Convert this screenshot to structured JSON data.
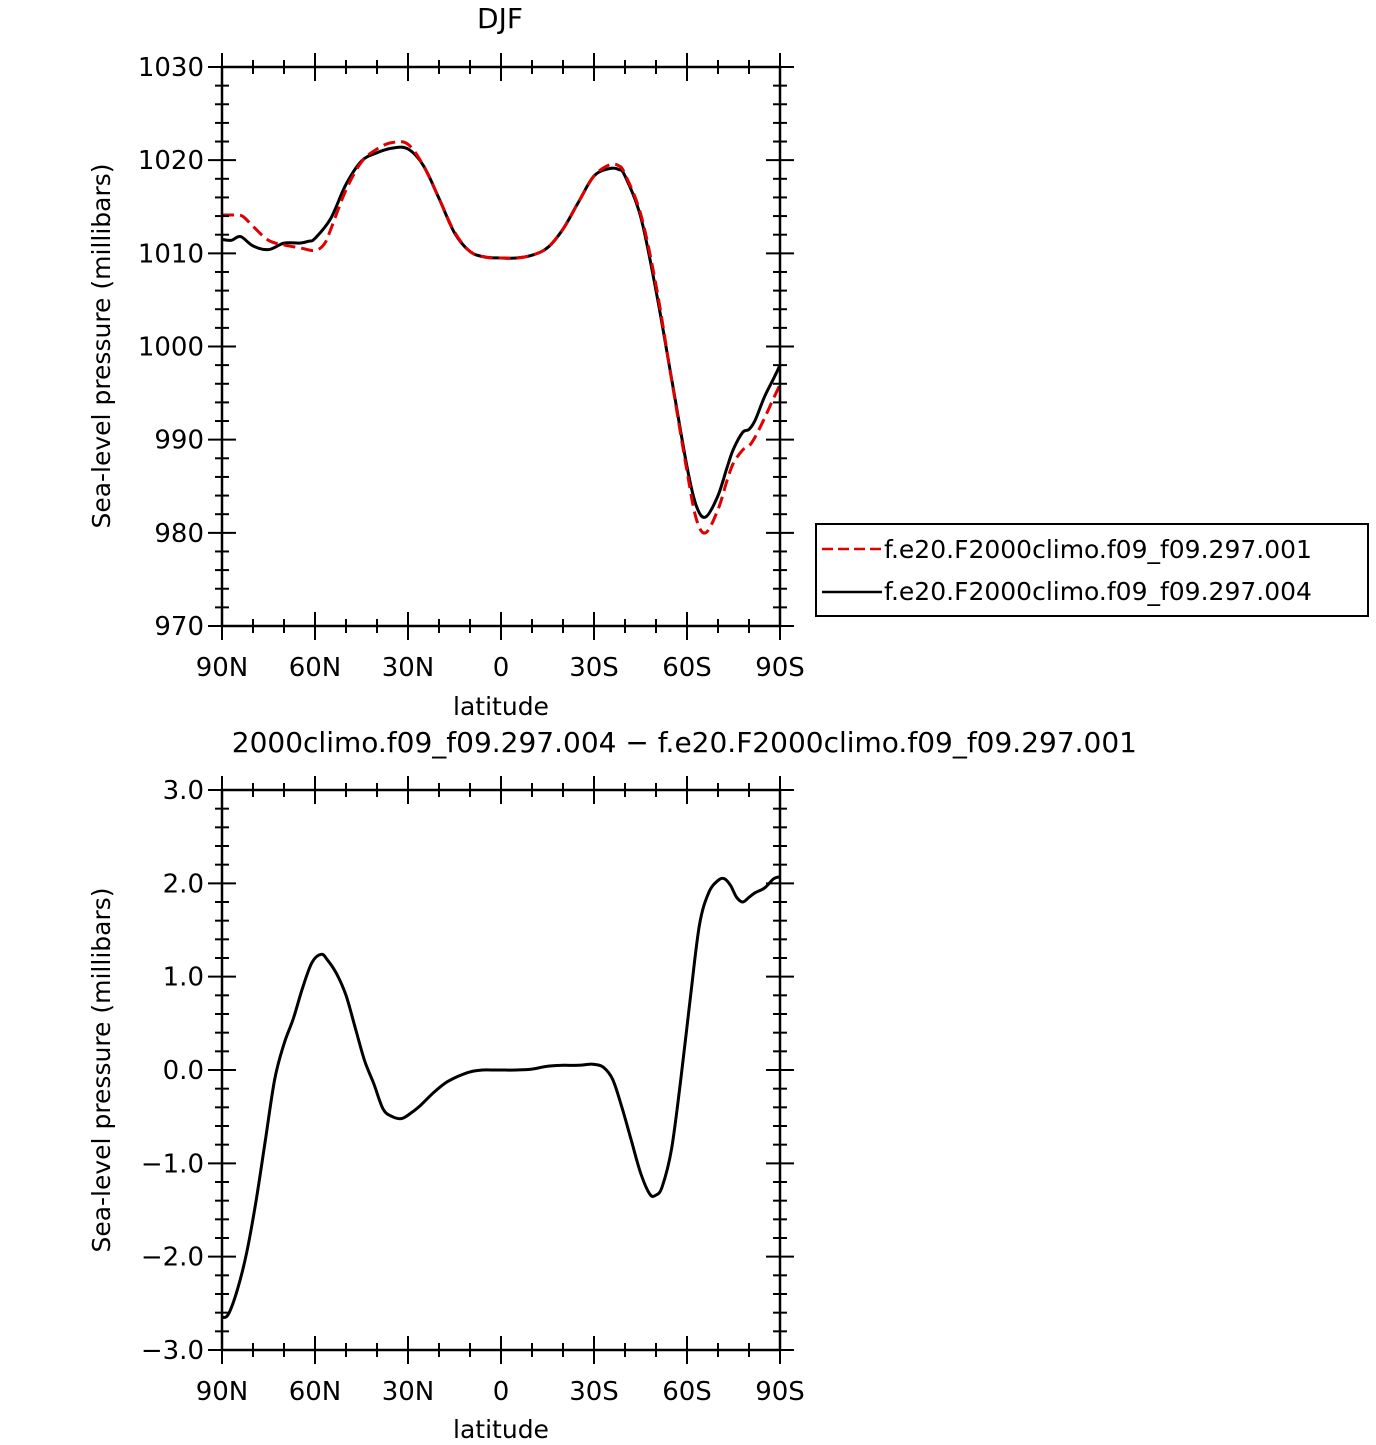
{
  "chart_data": [
    {
      "type": "line",
      "title": "DJF",
      "xlabel": "latitude",
      "ylabel": "Sea-level pressure (millibars)",
      "xlim": [
        90,
        -90
      ],
      "ylim": [
        970,
        1030
      ],
      "xticks": [
        90,
        60,
        30,
        0,
        -30,
        -60,
        -90
      ],
      "xtick_labels": [
        "90N",
        "60N",
        "30N",
        "0",
        "30S",
        "60S",
        "90S"
      ],
      "yticks": [
        970,
        980,
        990,
        1000,
        1010,
        1020,
        1030
      ],
      "ytick_labels": [
        "970",
        "980",
        "990",
        "1000",
        "1010",
        "1020",
        "1030"
      ],
      "legend_position": "right",
      "series": [
        {
          "name": "f.e20.F2000climo.f09_f09.297.001",
          "color": "#e00000",
          "style": "dashed",
          "x": [
            90,
            85,
            83,
            80,
            75,
            70,
            65,
            60,
            57,
            55,
            50,
            45,
            40,
            35,
            30,
            25,
            20,
            15,
            10,
            5,
            0,
            -5,
            -10,
            -15,
            -20,
            -25,
            -30,
            -35,
            -38,
            -40,
            -45,
            -50,
            -55,
            -60,
            -63,
            -66,
            -70,
            -73,
            -75,
            -78,
            -80,
            -82,
            -85,
            -88,
            -90
          ],
          "y": [
            1014.1,
            1014.1,
            1013.9,
            1012.9,
            1011.4,
            1010.9,
            1010.6,
            1010.3,
            1011.0,
            1012.5,
            1016.8,
            1019.8,
            1021.2,
            1021.9,
            1021.7,
            1019.4,
            1015.9,
            1012.3,
            1010.2,
            1009.6,
            1009.5,
            1009.5,
            1009.8,
            1010.6,
            1012.6,
            1015.5,
            1018.3,
            1019.5,
            1019.4,
            1018.5,
            1014.3,
            1006.6,
            996.5,
            986.6,
            981.5,
            980.0,
            982.5,
            985.7,
            987.5,
            988.9,
            989.3,
            990.3,
            992.3,
            994.5,
            995.9
          ]
        },
        {
          "name": "f.e20.F2000climo.f09_f09.297.004",
          "color": "#000000",
          "style": "solid",
          "x": [
            90,
            87,
            84,
            80,
            75,
            70,
            65,
            62,
            60,
            55,
            50,
            45,
            40,
            35,
            30,
            25,
            20,
            15,
            10,
            5,
            0,
            -5,
            -10,
            -15,
            -20,
            -25,
            -30,
            -35,
            -38,
            -40,
            -45,
            -50,
            -55,
            -60,
            -63,
            -66,
            -70,
            -73,
            -75,
            -78,
            -80,
            -82,
            -85,
            -88,
            -90
          ],
          "y": [
            1011.5,
            1011.4,
            1011.8,
            1010.8,
            1010.4,
            1011.1,
            1011.1,
            1011.3,
            1011.6,
            1013.7,
            1017.4,
            1019.9,
            1020.8,
            1021.3,
            1021.2,
            1019.4,
            1015.9,
            1012.2,
            1010.2,
            1009.6,
            1009.5,
            1009.5,
            1009.8,
            1010.6,
            1012.6,
            1015.5,
            1018.3,
            1019.1,
            1019.0,
            1018.3,
            1014.0,
            1006.0,
            996.6,
            987.1,
            982.9,
            981.7,
            984.0,
            987.1,
            989.0,
            990.8,
            991.1,
            992.1,
            994.6,
            996.6,
            998.0
          ]
        }
      ]
    },
    {
      "type": "line",
      "title": "2000climo.f09_f09.297.004 − f.e20.F2000climo.f09_f09.297.001",
      "xlabel": "latitude",
      "ylabel": "Sea-level pressure (millibars)",
      "xlim": [
        90,
        -90
      ],
      "ylim": [
        -3.0,
        3.0
      ],
      "xticks": [
        90,
        60,
        30,
        0,
        -30,
        -60,
        -90
      ],
      "xtick_labels": [
        "90N",
        "60N",
        "30N",
        "0",
        "30S",
        "60S",
        "90S"
      ],
      "yticks": [
        -3.0,
        -2.0,
        -1.0,
        0.0,
        1.0,
        2.0,
        3.0
      ],
      "ytick_labels": [
        "−3.0",
        "−2.0",
        "−1.0",
        "0.0",
        "1.0",
        "2.0",
        "3.0"
      ],
      "series": [
        {
          "color": "#000000",
          "style": "solid",
          "x": [
            90,
            88,
            85,
            82,
            79,
            76,
            73,
            70,
            67,
            64,
            61,
            58,
            56,
            53,
            50,
            47,
            44,
            41,
            38,
            35,
            32,
            29,
            26,
            22,
            18,
            14,
            10,
            6,
            2,
            0,
            -5,
            -10,
            -15,
            -20,
            -25,
            -28,
            -30,
            -33,
            -36,
            -39,
            -42,
            -45,
            -48,
            -50,
            -52,
            -55,
            -58,
            -61,
            -64,
            -67,
            -70,
            -72,
            -74,
            -76,
            -78,
            -80,
            -82,
            -85,
            -88,
            -90
          ],
          "y": [
            -2.65,
            -2.62,
            -2.35,
            -1.95,
            -1.4,
            -0.75,
            -0.1,
            0.28,
            0.55,
            0.88,
            1.15,
            1.24,
            1.18,
            1.03,
            0.8,
            0.45,
            0.1,
            -0.15,
            -0.42,
            -0.5,
            -0.52,
            -0.46,
            -0.38,
            -0.25,
            -0.14,
            -0.07,
            -0.02,
            0.0,
            0.0,
            0.0,
            0.0,
            0.01,
            0.04,
            0.05,
            0.05,
            0.06,
            0.06,
            0.03,
            -0.1,
            -0.4,
            -0.75,
            -1.1,
            -1.33,
            -1.34,
            -1.25,
            -0.85,
            -0.1,
            0.75,
            1.55,
            1.9,
            2.03,
            2.05,
            1.98,
            1.85,
            1.8,
            1.85,
            1.9,
            1.95,
            2.05,
            2.07
          ]
        }
      ]
    }
  ]
}
